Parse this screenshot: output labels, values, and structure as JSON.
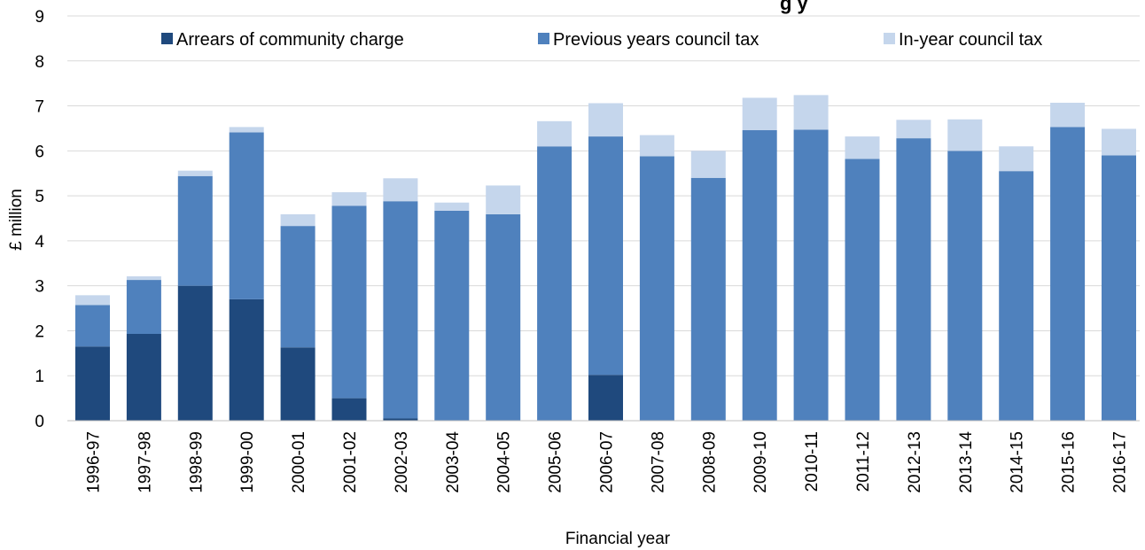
{
  "chart_data": {
    "type": "bar",
    "stacked": true,
    "title_partial": "g y",
    "xlabel": "Financial year",
    "ylabel": "£ million",
    "ylim": [
      0,
      9
    ],
    "yticks": [
      "0",
      "1",
      "2",
      "3",
      "4",
      "5",
      "6",
      "7",
      "8",
      "9"
    ],
    "grid": true,
    "legend_position": "top",
    "categories": [
      "1996-97",
      "1997-98",
      "1998-99",
      "1999-00",
      "2000-01",
      "2001-02",
      "2002-03",
      "2003-04",
      "2004-05",
      "2005-06",
      "2006-07",
      "2007-08",
      "2008-09",
      "2009-10",
      "2010-11",
      "2011-12",
      "2012-13",
      "2013-14",
      "2014-15",
      "2015-16",
      "2016-17"
    ],
    "series": [
      {
        "name": "Arrears of community charge",
        "color": "#1f497d",
        "values": [
          1.65,
          1.93,
          3.0,
          2.7,
          1.63,
          0.5,
          0.05,
          0,
          0,
          0,
          1.02,
          0,
          0,
          0,
          0,
          0,
          0,
          0,
          0,
          0,
          0
        ]
      },
      {
        "name": "Previous years council tax",
        "color": "#4f81bd",
        "values": [
          0.92,
          1.2,
          2.44,
          3.71,
          2.7,
          4.28,
          4.83,
          4.67,
          4.59,
          6.1,
          5.3,
          5.88,
          5.4,
          6.46,
          6.47,
          5.82,
          6.28,
          6.0,
          5.55,
          6.53,
          5.9
        ]
      },
      {
        "name": "In-year council tax",
        "color": "#c5d6ec",
        "values": [
          0.22,
          0.08,
          0.12,
          0.12,
          0.26,
          0.3,
          0.51,
          0.18,
          0.64,
          0.56,
          0.74,
          0.47,
          0.6,
          0.72,
          0.77,
          0.5,
          0.41,
          0.7,
          0.55,
          0.54,
          0.59
        ]
      }
    ]
  }
}
